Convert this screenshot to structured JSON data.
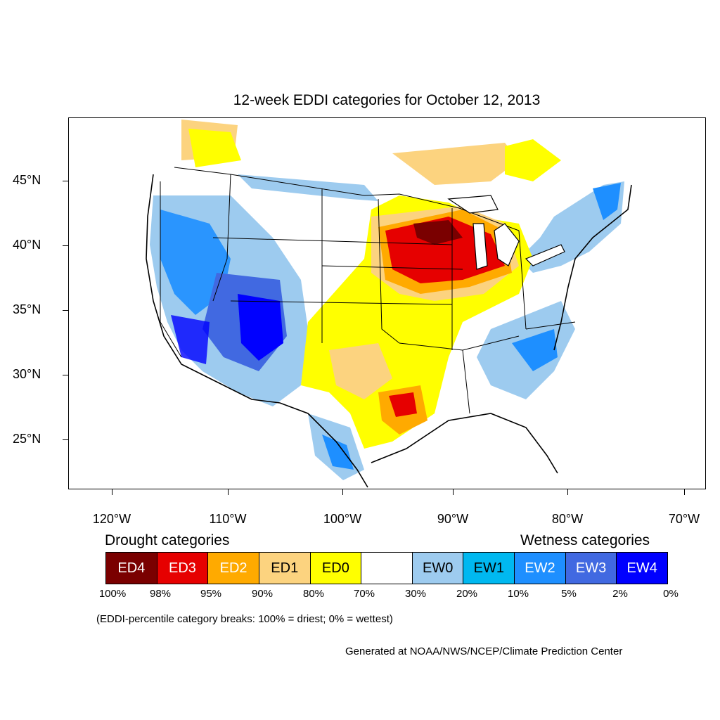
{
  "title": "12-week EDDI categories for October 12, 2013",
  "lat_labels": [
    "45°N",
    "40°N",
    "35°N",
    "30°N",
    "25°N"
  ],
  "lon_labels": [
    "120°W",
    "110°W",
    "100°W",
    "90°W",
    "80°W",
    "70°W"
  ],
  "legend": {
    "drought_heading": "Drought categories",
    "wetness_heading": "Wetness categories",
    "categories": [
      {
        "label": "ED4",
        "color": "#7a0000",
        "text_color": "#ffffff"
      },
      {
        "label": "ED3",
        "color": "#e60000",
        "text_color": "#ffffff"
      },
      {
        "label": "ED2",
        "color": "#ffaa00",
        "text_color": "#ffffff"
      },
      {
        "label": "ED1",
        "color": "#fcd37f",
        "text_color": "#000000"
      },
      {
        "label": "ED0",
        "color": "#ffff00",
        "text_color": "#000000"
      },
      {
        "label": "",
        "color": "#ffffff",
        "text_color": "#000000"
      },
      {
        "label": "EW0",
        "color": "#9dcbef",
        "text_color": "#000000"
      },
      {
        "label": "EW1",
        "color": "#00b8f0",
        "text_color": "#000000"
      },
      {
        "label": "EW2",
        "color": "#1e8fff",
        "text_color": "#ffffff"
      },
      {
        "label": "EW3",
        "color": "#4169e1",
        "text_color": "#ffffff"
      },
      {
        "label": "EW4",
        "color": "#0000ff",
        "text_color": "#ffffff"
      }
    ],
    "breaks": [
      "100%",
      "98%",
      "95%",
      "90%",
      "80%",
      "70%",
      "30%",
      "20%",
      "10%",
      "5%",
      "2%",
      "0%"
    ]
  },
  "note": "(EDDI-percentile category breaks: 100% = driest; 0% = wettest)",
  "credit": "Generated at NOAA/NWS/NCEP/Climate Prediction Center"
}
